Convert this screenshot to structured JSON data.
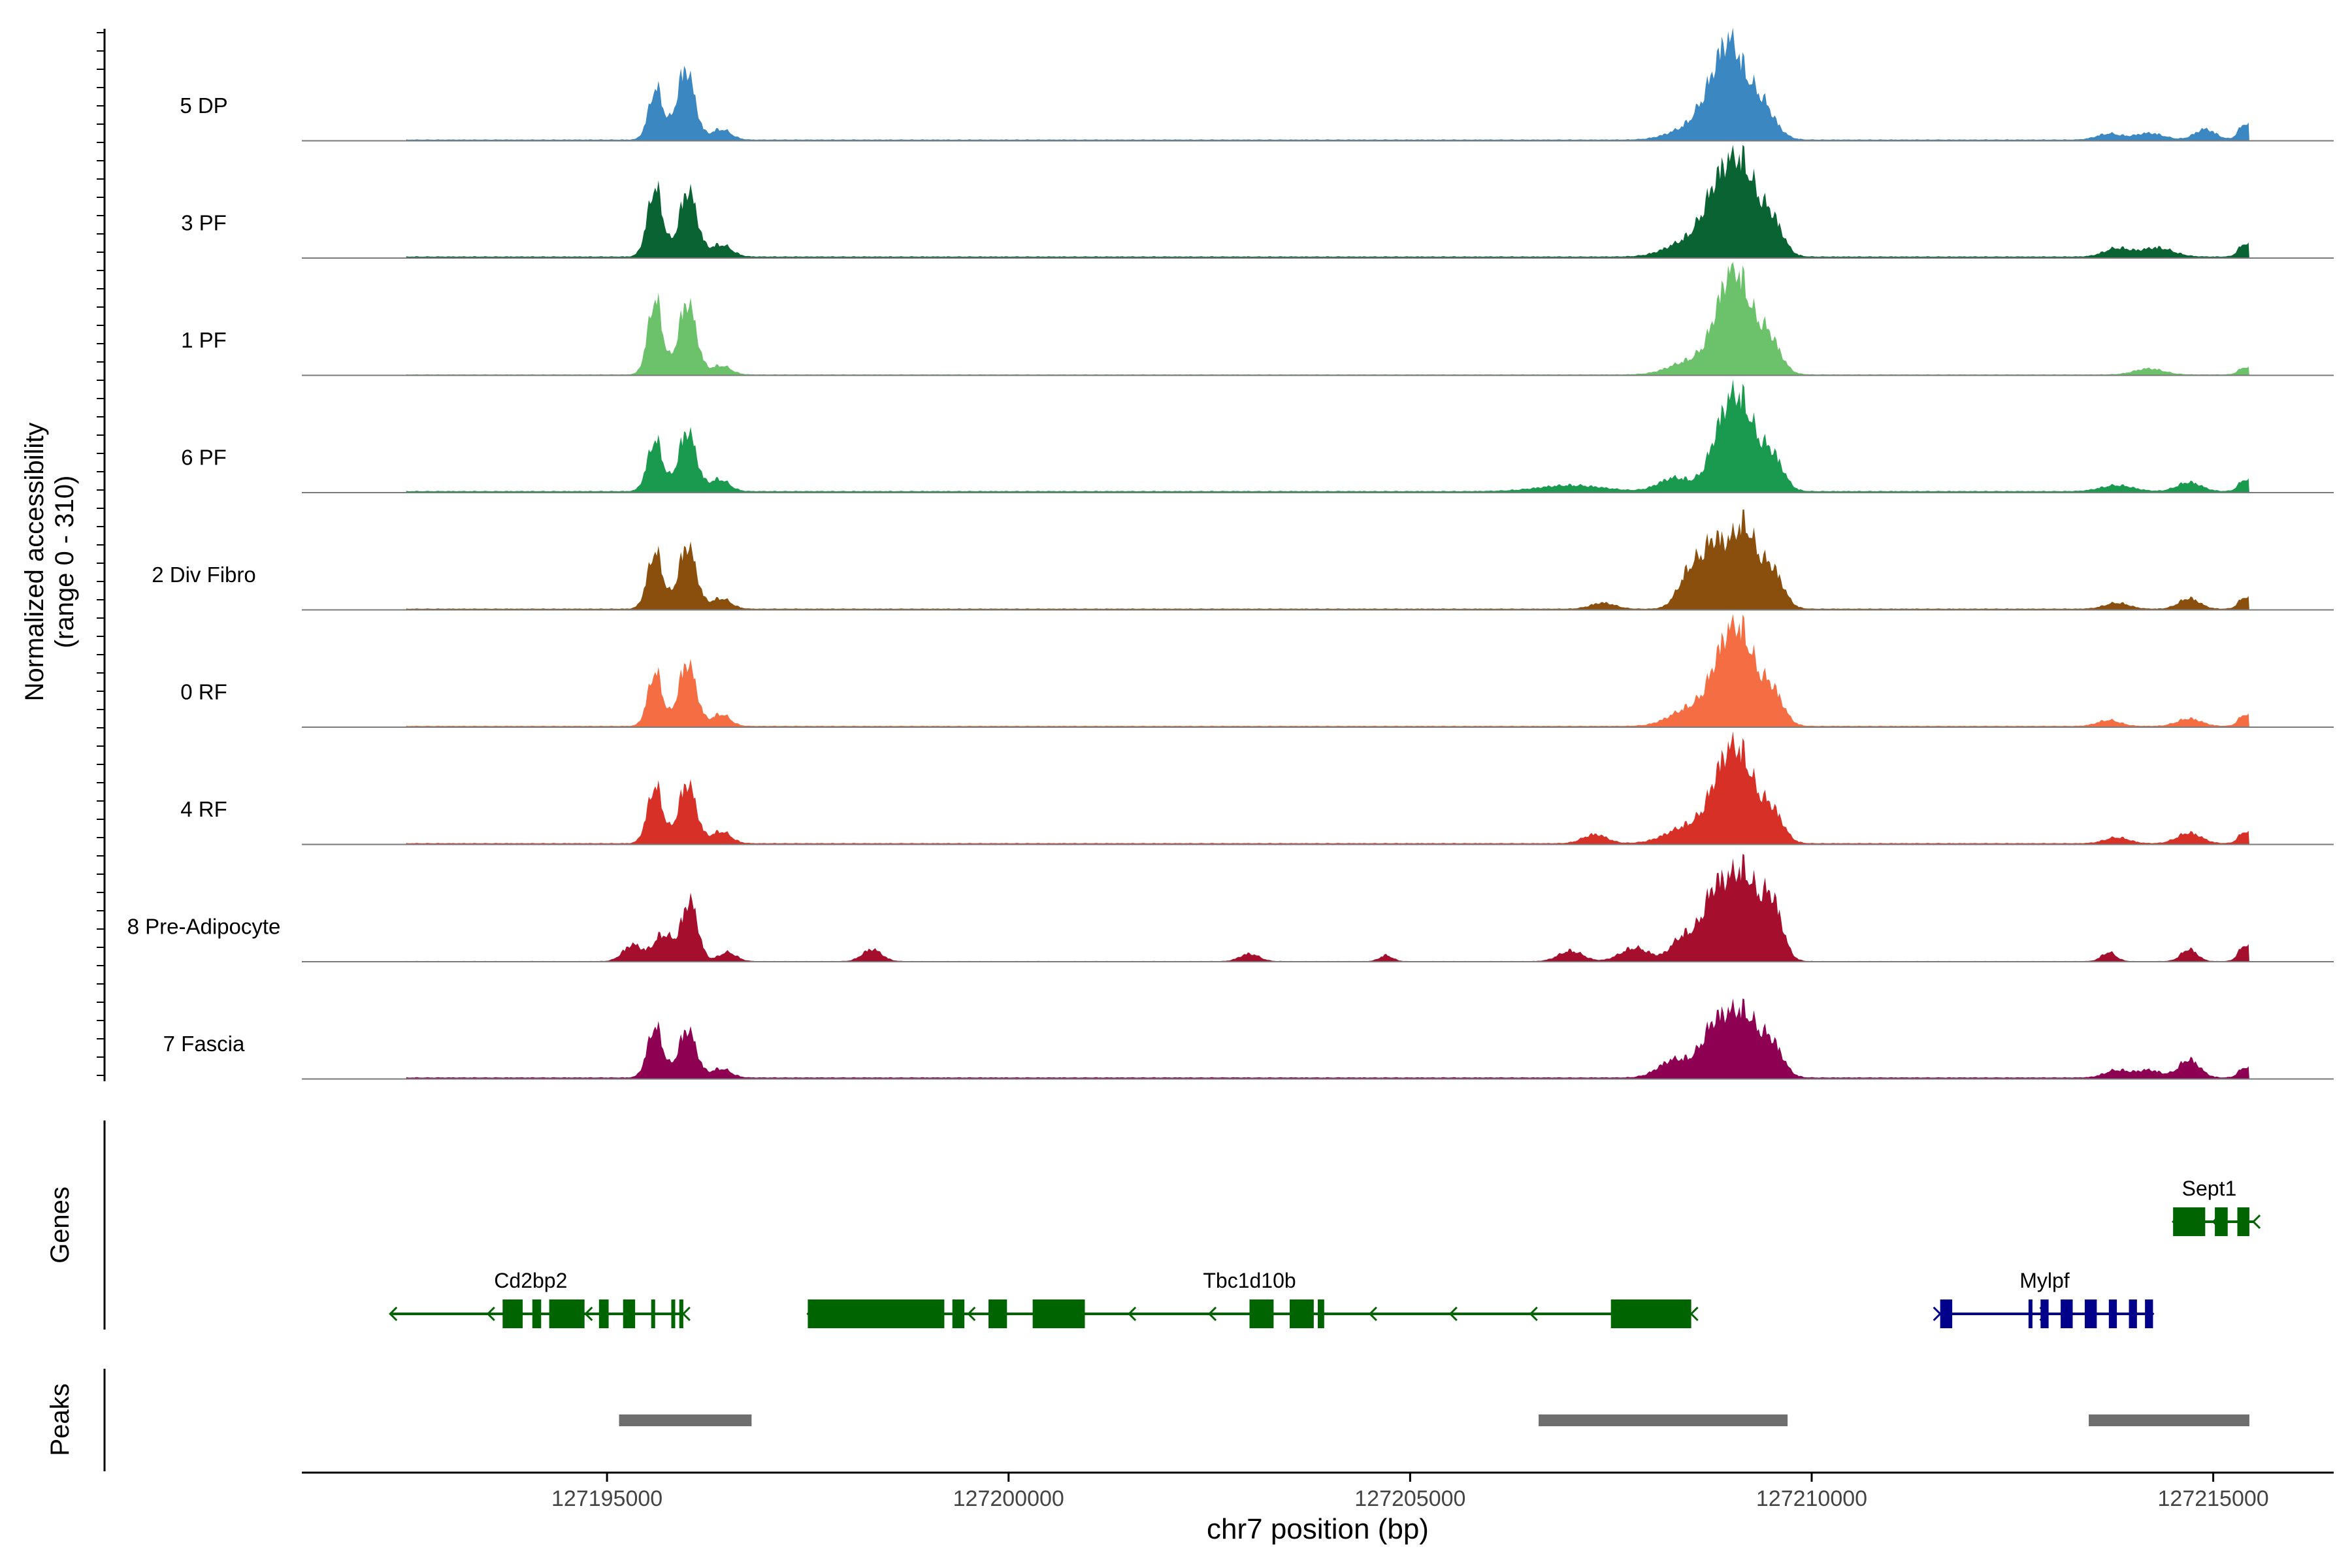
{
  "chart_data": {
    "type": "area",
    "title": "",
    "xlabel": "chr7 position (bp)",
    "ylabel": "Normalized accessibility",
    "ylabel_range": "(range 0 - 310)",
    "ylim": [
      0,
      310
    ],
    "xlim": [
      127191200,
      127216500
    ],
    "x_ticks": [
      127195000,
      127200000,
      127205000,
      127210000,
      127215000
    ],
    "x_tick_labels": [
      "127195000",
      "127200000",
      "127205000",
      "127210000",
      "127215000"
    ],
    "grid": false,
    "tracks": [
      {
        "name": "5 DP",
        "color": "#3A87C2",
        "peaks": [
          [
            127195610,
            170,
            90
          ],
          [
            127195980,
            235,
            110
          ],
          [
            127196420,
            35,
            120
          ],
          [
            127208500,
            40,
            260
          ],
          [
            127208780,
            130,
            170
          ],
          [
            127209000,
            240,
            150
          ],
          [
            127209330,
            140,
            180
          ],
          [
            127213700,
            20,
            150
          ],
          [
            127214200,
            22,
            180
          ],
          [
            127214900,
            35,
            130
          ],
          [
            127215400,
            55,
            80
          ]
        ],
        "baseline": 4
      },
      {
        "name": "3 PF",
        "color": "#0A6332",
        "peaks": [
          [
            127195600,
            230,
            95
          ],
          [
            127196010,
            220,
            110
          ],
          [
            127196420,
            40,
            130
          ],
          [
            127208500,
            55,
            280
          ],
          [
            127208850,
            200,
            180
          ],
          [
            127209150,
            260,
            170
          ],
          [
            127209500,
            120,
            140
          ],
          [
            127213800,
            28,
            160
          ],
          [
            127214300,
            30,
            200
          ],
          [
            127215400,
            45,
            80
          ]
        ],
        "baseline": 5
      },
      {
        "name": "1 PF",
        "color": "#6CC26A",
        "peaks": [
          [
            127195600,
            250,
            90
          ],
          [
            127196000,
            240,
            110
          ],
          [
            127196420,
            30,
            120
          ],
          [
            127208500,
            45,
            260
          ],
          [
            127208900,
            170,
            170
          ],
          [
            127209100,
            240,
            160
          ],
          [
            127209450,
            130,
            150
          ],
          [
            127214200,
            20,
            180
          ],
          [
            127215400,
            25,
            80
          ]
        ],
        "baseline": 3
      },
      {
        "name": "6 PF",
        "color": "#199A4E",
        "peaks": [
          [
            127195600,
            170,
            95
          ],
          [
            127196000,
            200,
            110
          ],
          [
            127196400,
            40,
            120
          ],
          [
            127207000,
            20,
            400
          ],
          [
            127208300,
            45,
            200
          ],
          [
            127208900,
            200,
            170
          ],
          [
            127209150,
            230,
            160
          ],
          [
            127209500,
            120,
            140
          ],
          [
            127213800,
            20,
            200
          ],
          [
            127214700,
            30,
            150
          ],
          [
            127215400,
            40,
            80
          ]
        ],
        "baseline": 5
      },
      {
        "name": "2 Div Fibro",
        "color": "#8B4F0D",
        "peaks": [
          [
            127195600,
            190,
            95
          ],
          [
            127196000,
            210,
            110
          ],
          [
            127196420,
            35,
            120
          ],
          [
            127207400,
            20,
            150
          ],
          [
            127208500,
            130,
            150
          ],
          [
            127208800,
            200,
            140
          ],
          [
            127209150,
            270,
            150
          ],
          [
            127209500,
            130,
            140
          ],
          [
            127213800,
            20,
            150
          ],
          [
            127214700,
            35,
            130
          ],
          [
            127215400,
            40,
            80
          ]
        ],
        "baseline": 4
      },
      {
        "name": "0 RF",
        "color": "#F46D43",
        "peaks": [
          [
            127195600,
            180,
            90
          ],
          [
            127196000,
            210,
            110
          ],
          [
            127196420,
            40,
            110
          ],
          [
            127208500,
            60,
            250
          ],
          [
            127208900,
            200,
            170
          ],
          [
            127209150,
            240,
            160
          ],
          [
            127209500,
            120,
            140
          ],
          [
            127213700,
            20,
            140
          ],
          [
            127214700,
            25,
            150
          ],
          [
            127215400,
            40,
            80
          ]
        ],
        "baseline": 4
      },
      {
        "name": "4 RF",
        "color": "#D73027",
        "peaks": [
          [
            127195600,
            190,
            95
          ],
          [
            127196000,
            200,
            110
          ],
          [
            127196420,
            40,
            120
          ],
          [
            127207300,
            30,
            150
          ],
          [
            127208500,
            60,
            280
          ],
          [
            127208900,
            200,
            170
          ],
          [
            127209150,
            220,
            160
          ],
          [
            127209500,
            110,
            140
          ],
          [
            127213800,
            20,
            150
          ],
          [
            127214700,
            35,
            150
          ],
          [
            127215400,
            40,
            80
          ]
        ],
        "baseline": 4
      },
      {
        "name": "8 Pre-Adipocyte",
        "color": "#A50F2D",
        "peaks": [
          [
            127195320,
            55,
            120
          ],
          [
            127195700,
            90,
            120
          ],
          [
            127196030,
            200,
            100
          ],
          [
            127196500,
            30,
            110
          ],
          [
            127198300,
            40,
            120
          ],
          [
            127203000,
            25,
            120
          ],
          [
            127204700,
            20,
            80
          ],
          [
            127207000,
            35,
            150
          ],
          [
            127207800,
            45,
            180
          ],
          [
            127208400,
            80,
            150
          ],
          [
            127208800,
            230,
            160
          ],
          [
            127209150,
            280,
            160
          ],
          [
            127209500,
            200,
            130
          ],
          [
            127213700,
            30,
            90
          ],
          [
            127214700,
            40,
            100
          ],
          [
            127215400,
            55,
            80
          ]
        ],
        "baseline": 2
      },
      {
        "name": "7 Fascia",
        "color": "#8E0152",
        "peaks": [
          [
            127195600,
            170,
            95
          ],
          [
            127196000,
            160,
            110
          ],
          [
            127196420,
            30,
            120
          ],
          [
            127208300,
            60,
            200
          ],
          [
            127208800,
            170,
            170
          ],
          [
            127209150,
            200,
            170
          ],
          [
            127209500,
            110,
            140
          ],
          [
            127213800,
            25,
            150
          ],
          [
            127214200,
            25,
            150
          ],
          [
            127214700,
            60,
            130
          ],
          [
            127215400,
            35,
            80
          ]
        ],
        "baseline": 5
      }
    ],
    "genes_label": "Genes",
    "genes": [
      {
        "name": "Cd2bp2",
        "color": "#006400",
        "strand": "-",
        "start": 127192300,
        "end": 127195950,
        "label_x": 127194050,
        "exons": [
          [
            127193700,
            127193950
          ],
          [
            127194070,
            127194180
          ],
          [
            127194280,
            127194720
          ],
          [
            127194900,
            127195020
          ],
          [
            127195200,
            127195350
          ],
          [
            127195550,
            127195590
          ],
          [
            127195800,
            127195840
          ],
          [
            127195900,
            127195950
          ]
        ]
      },
      {
        "name": "Tbc1d10b",
        "color": "#006400",
        "strand": "-",
        "start": 127197500,
        "end": 127208500,
        "label_x": 127203000,
        "exons": [
          [
            127197500,
            127199200
          ],
          [
            127199300,
            127199450
          ],
          [
            127199750,
            127199980
          ],
          [
            127200300,
            127200950
          ],
          [
            127203000,
            127203300
          ],
          [
            127203500,
            127203800
          ],
          [
            127203850,
            127203930
          ],
          [
            127207500,
            127208500
          ]
        ]
      },
      {
        "name": "Mylpf",
        "color": "#00008B",
        "strand": "+",
        "start": 127211600,
        "end": 127214250,
        "label_x": 127212900,
        "exons": [
          [
            127211600,
            127211750
          ],
          [
            127212700,
            127212720
          ],
          [
            127212850,
            127212950
          ],
          [
            127213100,
            127213250
          ],
          [
            127213400,
            127213550
          ],
          [
            127213700,
            127213800
          ],
          [
            127213950,
            127214050
          ],
          [
            127214150,
            127214250
          ]
        ]
      },
      {
        "name": "Sept1",
        "color": "#006400",
        "strand": "-",
        "start": 127214500,
        "end": 127215500,
        "label_x": 127214950,
        "exons": [
          [
            127214500,
            127214900
          ],
          [
            127215020,
            127215180
          ],
          [
            127215300,
            127215450
          ]
        ]
      }
    ],
    "peaks_label": "Peaks",
    "peak_color": "#6E6E6E",
    "peak_regions": [
      [
        127195150,
        127196800
      ],
      [
        127206600,
        127209700
      ],
      [
        127213450,
        127215450
      ]
    ]
  }
}
